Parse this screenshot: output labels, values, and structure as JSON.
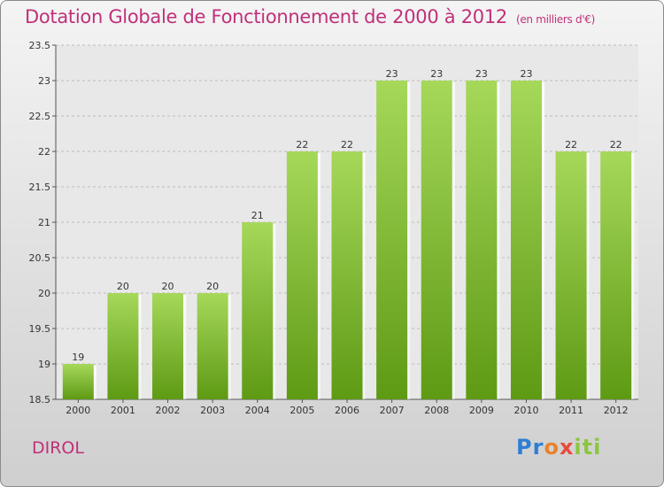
{
  "header": {
    "title": "Dotation Globale de Fonctionnement de 2000 à 2012",
    "unit": "(en milliers d'€)"
  },
  "footer": {
    "commune": "DIROL",
    "logo": "Proxiti"
  },
  "colors": {
    "bar_top": "#a6d85a",
    "bar_bottom": "#5e9a14",
    "title": "#c0307a",
    "grid": "#bdbdbd"
  },
  "chart_data": {
    "type": "bar",
    "title": "Dotation Globale de Fonctionnement de 2000 à 2012",
    "subtitle": "(en milliers d'€)",
    "categories": [
      "2000",
      "2001",
      "2002",
      "2003",
      "2004",
      "2005",
      "2006",
      "2007",
      "2008",
      "2009",
      "2010",
      "2011",
      "2012"
    ],
    "values": [
      19,
      20,
      20,
      20,
      21,
      22,
      22,
      23,
      23,
      23,
      23,
      22,
      22
    ],
    "data_labels": [
      "19",
      "20",
      "20",
      "20",
      "21",
      "22",
      "22",
      "23",
      "23",
      "23",
      "23",
      "22",
      "22"
    ],
    "xlabel": "",
    "ylabel": "",
    "ylim": [
      18.5,
      23.5
    ],
    "yticks": [
      "18.5",
      "19",
      "19.5",
      "20",
      "20.5",
      "21",
      "21.5",
      "22",
      "22.5",
      "23",
      "23.5"
    ],
    "grid": true,
    "legend": "none"
  }
}
